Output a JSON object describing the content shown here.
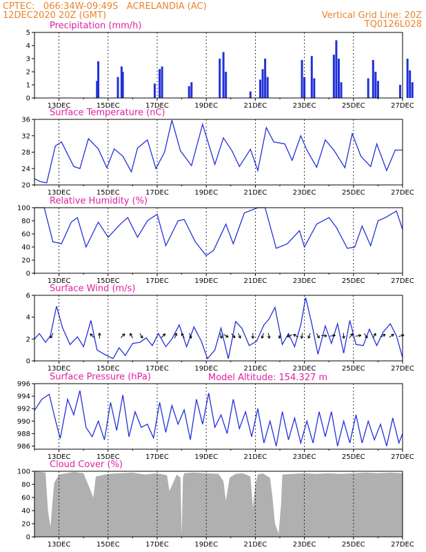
{
  "header": {
    "line1": "CPTEC:   066:34W-09:49S   ACRELANDIA (AC)",
    "line2": "12DEC2020 20Z (GMT)",
    "grid_note": "Vertical Grid Line: 20Z",
    "model_code": "TQ0126L028",
    "model_altitude": "Model Altitude: 154.327 m"
  },
  "colors": {
    "header": "#e8842c",
    "title": "#e020a0",
    "series": "#2030d8",
    "bars": "#2030d8",
    "cloud": "#b0b0b0",
    "arrows": "#000000"
  },
  "chart_data": [
    {
      "type": "bar",
      "title": "Precipitation (mm/h)",
      "ylim": [
        0,
        5
      ],
      "yticks": [
        0,
        1,
        2,
        3,
        4,
        5
      ],
      "xlim": [
        0,
        15
      ],
      "xticks": [
        1,
        3,
        5,
        7,
        9,
        11,
        13,
        15
      ],
      "xtick_labels": [
        "13DEC",
        "15DEC",
        "17DEC",
        "19DEC",
        "21DEC",
        "23DEC",
        "25DEC",
        "27DEC"
      ],
      "values": [
        [
          2.55,
          1.3
        ],
        [
          2.6,
          2.8
        ],
        [
          3.4,
          1.6
        ],
        [
          3.55,
          2.4
        ],
        [
          3.6,
          2.0
        ],
        [
          4.9,
          1.1
        ],
        [
          5.1,
          2.2
        ],
        [
          5.2,
          2.4
        ],
        [
          6.3,
          0.9
        ],
        [
          6.4,
          1.2
        ],
        [
          7.55,
          3.0
        ],
        [
          7.7,
          3.5
        ],
        [
          7.8,
          2.0
        ],
        [
          8.8,
          0.5
        ],
        [
          9.2,
          1.4
        ],
        [
          9.3,
          2.2
        ],
        [
          9.4,
          3.0
        ],
        [
          9.5,
          1.6
        ],
        [
          10.9,
          2.9
        ],
        [
          11.0,
          1.6
        ],
        [
          11.3,
          3.2
        ],
        [
          11.4,
          1.5
        ],
        [
          12.2,
          3.3
        ],
        [
          12.3,
          4.4
        ],
        [
          12.4,
          3.0
        ],
        [
          12.5,
          1.2
        ],
        [
          13.6,
          1.5
        ],
        [
          13.8,
          2.9
        ],
        [
          13.9,
          2.0
        ],
        [
          14.0,
          1.3
        ],
        [
          14.9,
          1.0
        ],
        [
          15.2,
          3.0
        ],
        [
          15.3,
          2.1
        ],
        [
          15.4,
          1.2
        ]
      ]
    },
    {
      "type": "line",
      "title": "Surface Temperature (nC)",
      "ylim": [
        20,
        36
      ],
      "yticks": [
        20,
        24,
        28,
        32,
        36
      ],
      "xlim": [
        0,
        15
      ],
      "xticks": [
        1,
        3,
        5,
        7,
        9,
        11,
        13,
        15
      ],
      "xtick_labels": [
        "13DEC",
        "15DEC",
        "17DEC",
        "19DEC",
        "21DEC",
        "23DEC",
        "25DEC",
        "27DEC"
      ],
      "x": [
        0,
        0.25,
        0.5,
        0.85,
        1.1,
        1.6,
        1.85,
        2.2,
        2.6,
        2.95,
        3.25,
        3.6,
        3.95,
        4.2,
        4.6,
        4.95,
        5.3,
        5.6,
        5.95,
        6.4,
        6.85,
        7.35,
        7.7,
        8.05,
        8.35,
        8.8,
        9.1,
        9.45,
        9.75,
        10.2,
        10.5,
        10.85,
        11.1,
        11.5,
        11.85,
        12.2,
        12.65,
        12.95,
        13.3,
        13.7,
        13.95,
        14.35,
        14.7,
        15.0
      ],
      "values": [
        21.5,
        20.8,
        20.5,
        29.5,
        30.5,
        24.5,
        24.0,
        31.3,
        28.8,
        24.2,
        28.8,
        27.0,
        23.2,
        29.0,
        31.0,
        24.0,
        28.0,
        35.8,
        28.3,
        24.7,
        34.8,
        25.0,
        31.5,
        28.3,
        24.5,
        28.7,
        23.5,
        34.0,
        30.5,
        30.0,
        26.0,
        32.0,
        28.5,
        24.3,
        31.0,
        28.5,
        24.2,
        32.5,
        27.0,
        24.5,
        30.0,
        23.5,
        28.5,
        28.5
      ]
    },
    {
      "type": "line",
      "title": "Relative Humidity (%)",
      "ylim": [
        0,
        100
      ],
      "yticks": [
        0,
        20,
        40,
        60,
        80,
        100
      ],
      "xlim": [
        0,
        15
      ],
      "xticks": [
        1,
        3,
        5,
        7,
        9,
        11,
        13,
        15
      ],
      "xtick_labels": [
        "13DEC",
        "15DEC",
        "17DEC",
        "19DEC",
        "21DEC",
        "23DEC",
        "25DEC",
        "27DEC"
      ],
      "x": [
        0,
        0.4,
        0.75,
        1.1,
        1.5,
        1.75,
        2.1,
        2.6,
        3.0,
        3.5,
        3.8,
        4.2,
        4.6,
        5.0,
        5.35,
        5.85,
        6.1,
        6.55,
        7.0,
        7.3,
        7.8,
        8.1,
        8.55,
        9.1,
        9.4,
        9.85,
        10.3,
        10.8,
        11.0,
        11.5,
        12.0,
        12.3,
        12.75,
        13.05,
        13.35,
        13.7,
        14.0,
        14.3,
        14.75,
        15.0
      ],
      "values": [
        100,
        100,
        48,
        45,
        78,
        85,
        40,
        78,
        55,
        75,
        85,
        55,
        80,
        90,
        42,
        80,
        82,
        48,
        27,
        35,
        75,
        45,
        92,
        100,
        100,
        38,
        45,
        65,
        40,
        75,
        85,
        70,
        38,
        40,
        72,
        42,
        80,
        85,
        95,
        67
      ]
    },
    {
      "type": "line",
      "title": "Surface Wind (m/s)",
      "ylim": [
        0,
        6
      ],
      "yticks": [
        0,
        2,
        4,
        6
      ],
      "xlim": [
        0,
        15
      ],
      "xticks": [
        1,
        3,
        5,
        7,
        9,
        11,
        13,
        15
      ],
      "xtick_labels": [
        "13DEC",
        "15DEC",
        "17DEC",
        "19DEC",
        "21DEC",
        "23DEC",
        "25DEC",
        "27DEC"
      ],
      "x": [
        0,
        0.2,
        0.45,
        0.65,
        0.9,
        1.15,
        1.45,
        1.75,
        2.0,
        2.3,
        2.55,
        2.85,
        3.2,
        3.45,
        3.7,
        4.0,
        4.3,
        4.55,
        4.8,
        5.05,
        5.35,
        5.6,
        5.9,
        6.2,
        6.5,
        6.8,
        7.05,
        7.35,
        7.6,
        7.9,
        8.2,
        8.45,
        8.75,
        9.05,
        9.35,
        9.55,
        9.8,
        10.1,
        10.35,
        10.6,
        10.85,
        11.05,
        11.3,
        11.55,
        11.85,
        12.1,
        12.35,
        12.6,
        12.85,
        13.1,
        13.4,
        13.65,
        13.95,
        14.2,
        14.5,
        14.75,
        15.0
      ],
      "values": [
        2.0,
        2.5,
        1.7,
        2.3,
        5.0,
        3.0,
        1.5,
        2.2,
        1.3,
        3.7,
        1.0,
        0.6,
        0.2,
        1.2,
        0.5,
        1.6,
        1.7,
        2.1,
        1.4,
        2.5,
        1.3,
        2.0,
        3.3,
        1.3,
        3.1,
        1.8,
        0.2,
        1.0,
        3.0,
        0.2,
        3.6,
        3.0,
        1.4,
        1.8,
        3.3,
        3.8,
        4.9,
        1.5,
        2.5,
        1.3,
        3.3,
        5.8,
        3.4,
        0.6,
        3.2,
        1.6,
        3.4,
        0.7,
        3.7,
        1.5,
        1.4,
        2.9,
        1.4,
        2.6,
        3.4,
        2.3,
        0.3
      ]
    },
    {
      "type": "line",
      "title": "Surface Pressure (hPa)",
      "ylim": [
        985.5,
        996
      ],
      "yticks": [
        986,
        988,
        990,
        992,
        994,
        996
      ],
      "xlim": [
        0,
        15
      ],
      "xticks": [
        1,
        3,
        5,
        7,
        9,
        11,
        13,
        15
      ],
      "xtick_labels": [
        "13DEC",
        "15DEC",
        "17DEC",
        "19DEC",
        "21DEC",
        "23DEC",
        "25DEC",
        "27DEC"
      ],
      "x": [
        0,
        0.3,
        0.6,
        0.85,
        1.05,
        1.35,
        1.6,
        1.85,
        2.1,
        2.35,
        2.6,
        2.85,
        3.1,
        3.35,
        3.6,
        3.85,
        4.1,
        4.35,
        4.6,
        4.85,
        5.1,
        5.35,
        5.6,
        5.85,
        6.1,
        6.35,
        6.6,
        6.85,
        7.1,
        7.35,
        7.6,
        7.85,
        8.1,
        8.35,
        8.6,
        8.85,
        9.1,
        9.35,
        9.6,
        9.85,
        10.1,
        10.35,
        10.6,
        10.85,
        11.1,
        11.35,
        11.6,
        11.85,
        12.1,
        12.35,
        12.6,
        12.85,
        13.1,
        13.35,
        13.6,
        13.85,
        14.1,
        14.35,
        14.6,
        14.85,
        15.0
      ],
      "values": [
        991.7,
        993.5,
        994.3,
        990.2,
        987.2,
        993.5,
        991.0,
        994.9,
        989.0,
        987.5,
        990.0,
        987.0,
        993.0,
        988.5,
        994.2,
        987.5,
        991.5,
        989.0,
        989.5,
        987.3,
        993.0,
        988.2,
        992.5,
        989.5,
        991.8,
        987.0,
        993.5,
        989.5,
        994.5,
        989.0,
        991.0,
        988.0,
        993.5,
        988.8,
        991.5,
        987.5,
        992.0,
        986.5,
        990.0,
        986.0,
        991.5,
        987.0,
        990.5,
        986.5,
        990.0,
        986.5,
        991.5,
        987.5,
        991.5,
        986.0,
        990.0,
        986.5,
        991.0,
        986.5,
        990.0,
        987.0,
        989.5,
        986.0,
        990.5,
        986.5,
        988.0
      ]
    },
    {
      "type": "area",
      "title": "Cloud Cover (%)",
      "ylim": [
        0,
        100
      ],
      "yticks": [
        0,
        20,
        40,
        60,
        80,
        100
      ],
      "xlim": [
        0,
        15
      ],
      "xticks": [
        1,
        3,
        5,
        7,
        9,
        11,
        13,
        15
      ],
      "xtick_labels": [
        "13DEC",
        "15DEC",
        "17DEC",
        "19DEC",
        "21DEC",
        "23DEC",
        "25DEC",
        "27DEC"
      ],
      "x": [
        0,
        0.45,
        0.55,
        0.65,
        0.8,
        1.0,
        1.3,
        1.6,
        2.0,
        2.4,
        2.5,
        3.0,
        3.5,
        4.0,
        4.5,
        5.0,
        5.4,
        5.5,
        5.8,
        5.95,
        6.0,
        6.05,
        6.1,
        6.5,
        7.0,
        7.5,
        7.7,
        7.8,
        7.95,
        8.2,
        8.5,
        8.8,
        8.9,
        9.0,
        9.1,
        9.3,
        9.6,
        9.7,
        9.8,
        9.95,
        10.05,
        10.1,
        10.5,
        11.0,
        11.5,
        12.0,
        12.5,
        13.0,
        13.5,
        14.0,
        14.5,
        15.0
      ],
      "values": [
        100,
        98,
        40,
        15,
        82,
        95,
        97,
        99,
        97,
        60,
        92,
        96,
        97,
        98,
        95,
        97,
        94,
        70,
        95,
        90,
        2,
        90,
        97,
        98,
        97,
        96,
        85,
        55,
        90,
        96,
        97,
        92,
        45,
        80,
        95,
        97,
        90,
        60,
        20,
        5,
        50,
        95,
        96,
        97,
        96,
        97,
        96,
        97,
        98,
        97,
        98,
        97
      ]
    }
  ]
}
